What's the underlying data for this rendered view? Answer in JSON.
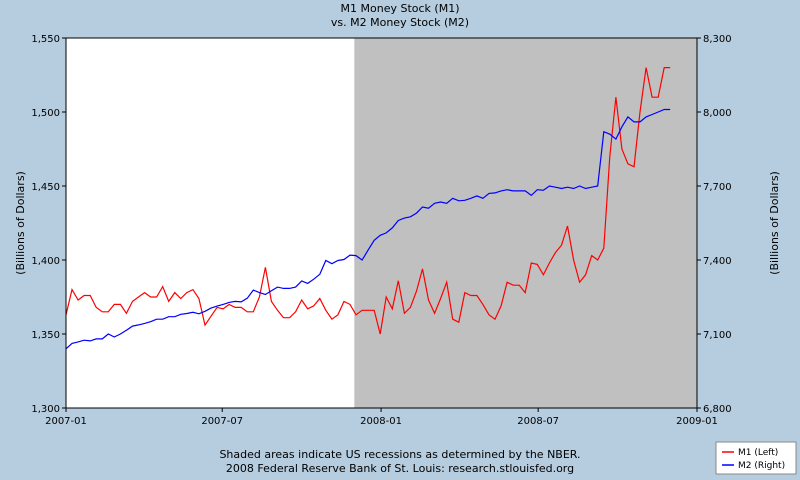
{
  "chart_data": {
    "type": "line",
    "title": "M1 Money Stock (M1)",
    "subtitle": "vs.  M2 Money Stock (M2)",
    "left_axis": {
      "label": "(Billions of Dollars)",
      "ylim": [
        1300,
        1550
      ],
      "ticks": [
        1300,
        1350,
        1400,
        1450,
        1500,
        1550
      ],
      "tick_labels": [
        "1,300",
        "1,350",
        "1,400",
        "1,450",
        "1,500",
        "1,550"
      ]
    },
    "right_axis": {
      "label": "(Billions of Dollars)",
      "ylim": [
        6800,
        8300
      ],
      "ticks": [
        6800,
        7100,
        7400,
        7700,
        8000,
        8300
      ],
      "tick_labels": [
        "6,800",
        "7,100",
        "7,400",
        "7,700",
        "8,000",
        "8,300"
      ]
    },
    "x_axis": {
      "xlim": [
        "2007-01-01",
        "2009-01-01"
      ],
      "ticks": [
        "2007-01-01",
        "2007-07-01",
        "2008-01-01",
        "2008-07-01",
        "2009-01-01"
      ],
      "tick_labels": [
        "2007-01",
        "2007-07",
        "2008-01",
        "2008-07",
        "2009-01"
      ]
    },
    "recession_band": {
      "start": "2007-12-01",
      "end": "2009-01-01"
    },
    "grid": false,
    "legend_position": "bottom-right",
    "series": [
      {
        "name": "M1 (Left)",
        "axis": "left",
        "color": "#ff0000",
        "x": [
          "2007-01-01",
          "2007-01-08",
          "2007-01-15",
          "2007-01-22",
          "2007-01-29",
          "2007-02-05",
          "2007-02-12",
          "2007-02-19",
          "2007-02-26",
          "2007-03-05",
          "2007-03-12",
          "2007-03-19",
          "2007-03-26",
          "2007-04-02",
          "2007-04-09",
          "2007-04-16",
          "2007-04-23",
          "2007-04-30",
          "2007-05-07",
          "2007-05-14",
          "2007-05-21",
          "2007-05-28",
          "2007-06-04",
          "2007-06-11",
          "2007-06-18",
          "2007-06-25",
          "2007-07-02",
          "2007-07-09",
          "2007-07-16",
          "2007-07-23",
          "2007-07-30",
          "2007-08-06",
          "2007-08-13",
          "2007-08-20",
          "2007-08-27",
          "2007-09-03",
          "2007-09-10",
          "2007-09-17",
          "2007-09-24",
          "2007-10-01",
          "2007-10-08",
          "2007-10-15",
          "2007-10-22",
          "2007-10-29",
          "2007-11-05",
          "2007-11-12",
          "2007-11-19",
          "2007-11-26",
          "2007-12-03",
          "2007-12-10",
          "2007-12-17",
          "2007-12-24",
          "2007-12-31",
          "2008-01-07",
          "2008-01-14",
          "2008-01-21",
          "2008-01-28",
          "2008-02-04",
          "2008-02-11",
          "2008-02-18",
          "2008-02-25",
          "2008-03-03",
          "2008-03-10",
          "2008-03-17",
          "2008-03-24",
          "2008-03-31",
          "2008-04-07",
          "2008-04-14",
          "2008-04-21",
          "2008-04-28",
          "2008-05-05",
          "2008-05-12",
          "2008-05-19",
          "2008-05-26",
          "2008-06-02",
          "2008-06-09",
          "2008-06-16",
          "2008-06-23",
          "2008-06-30",
          "2008-07-07",
          "2008-07-14",
          "2008-07-21",
          "2008-07-28",
          "2008-08-04",
          "2008-08-11",
          "2008-08-18",
          "2008-08-25",
          "2008-09-01",
          "2008-09-08",
          "2008-09-15",
          "2008-09-22",
          "2008-09-29",
          "2008-10-06",
          "2008-10-13",
          "2008-10-20",
          "2008-10-27",
          "2008-11-03",
          "2008-11-10",
          "2008-11-17",
          "2008-11-24",
          "2008-12-01"
        ],
        "values": [
          1363,
          1380,
          1373,
          1376,
          1376,
          1368,
          1365,
          1365,
          1370,
          1370,
          1364,
          1372,
          1375,
          1378,
          1375,
          1375,
          1382,
          1372,
          1378,
          1374,
          1378,
          1380,
          1374,
          1356,
          1362,
          1368,
          1367,
          1370,
          1368,
          1368,
          1365,
          1365,
          1375,
          1395,
          1372,
          1366,
          1361,
          1361,
          1365,
          1373,
          1367,
          1369,
          1374,
          1366,
          1360,
          1363,
          1372,
          1370,
          1363,
          1366,
          1366,
          1366,
          1350,
          1375,
          1367,
          1386,
          1364,
          1368,
          1379,
          1394,
          1373,
          1364,
          1374,
          1385,
          1360,
          1358,
          1378,
          1376,
          1376,
          1370,
          1363,
          1360,
          1369,
          1385,
          1383,
          1383,
          1378,
          1398,
          1397,
          1390,
          1398,
          1405,
          1410,
          1423,
          1400,
          1385,
          1390,
          1403,
          1400,
          1408,
          1470,
          1510,
          1475,
          1465,
          1463,
          1500,
          1530,
          1510,
          1510,
          1530,
          1530
        ]
      },
      {
        "name": "M2 (Right)",
        "axis": "right",
        "color": "#0000ff",
        "x": [
          "2007-01-01",
          "2007-01-08",
          "2007-01-15",
          "2007-01-22",
          "2007-01-29",
          "2007-02-05",
          "2007-02-12",
          "2007-02-19",
          "2007-02-26",
          "2007-03-05",
          "2007-03-12",
          "2007-03-19",
          "2007-03-26",
          "2007-04-02",
          "2007-04-09",
          "2007-04-16",
          "2007-04-23",
          "2007-04-30",
          "2007-05-07",
          "2007-05-14",
          "2007-05-21",
          "2007-05-28",
          "2007-06-04",
          "2007-06-11",
          "2007-06-18",
          "2007-06-25",
          "2007-07-02",
          "2007-07-09",
          "2007-07-16",
          "2007-07-23",
          "2007-07-30",
          "2007-08-06",
          "2007-08-13",
          "2007-08-20",
          "2007-08-27",
          "2007-09-03",
          "2007-09-10",
          "2007-09-17",
          "2007-09-24",
          "2007-10-01",
          "2007-10-08",
          "2007-10-15",
          "2007-10-22",
          "2007-10-29",
          "2007-11-05",
          "2007-11-12",
          "2007-11-19",
          "2007-11-26",
          "2007-12-03",
          "2007-12-10",
          "2007-12-17",
          "2007-12-24",
          "2007-12-31",
          "2008-01-07",
          "2008-01-14",
          "2008-01-21",
          "2008-01-28",
          "2008-02-04",
          "2008-02-11",
          "2008-02-18",
          "2008-02-25",
          "2008-03-03",
          "2008-03-10",
          "2008-03-17",
          "2008-03-24",
          "2008-03-31",
          "2008-04-07",
          "2008-04-14",
          "2008-04-21",
          "2008-04-28",
          "2008-05-05",
          "2008-05-12",
          "2008-05-19",
          "2008-05-26",
          "2008-06-02",
          "2008-06-09",
          "2008-06-16",
          "2008-06-23",
          "2008-06-30",
          "2008-07-07",
          "2008-07-14",
          "2008-07-21",
          "2008-07-28",
          "2008-08-04",
          "2008-08-11",
          "2008-08-18",
          "2008-08-25",
          "2008-09-01",
          "2008-09-08",
          "2008-09-15",
          "2008-09-22",
          "2008-09-29",
          "2008-10-06",
          "2008-10-13",
          "2008-10-20",
          "2008-10-27",
          "2008-11-03",
          "2008-11-10",
          "2008-11-17",
          "2008-11-24",
          "2008-12-01"
        ],
        "values": [
          7040,
          7062,
          7068,
          7075,
          7072,
          7080,
          7080,
          7100,
          7088,
          7100,
          7115,
          7132,
          7137,
          7143,
          7150,
          7160,
          7160,
          7170,
          7170,
          7180,
          7183,
          7188,
          7182,
          7192,
          7205,
          7213,
          7220,
          7228,
          7232,
          7230,
          7245,
          7278,
          7268,
          7260,
          7275,
          7290,
          7285,
          7285,
          7290,
          7315,
          7305,
          7322,
          7342,
          7398,
          7385,
          7398,
          7402,
          7420,
          7418,
          7400,
          7440,
          7480,
          7500,
          7510,
          7530,
          7560,
          7570,
          7575,
          7590,
          7615,
          7610,
          7630,
          7635,
          7630,
          7650,
          7640,
          7642,
          7650,
          7660,
          7650,
          7670,
          7672,
          7680,
          7685,
          7680,
          7680,
          7680,
          7662,
          7685,
          7683,
          7700,
          7695,
          7690,
          7695,
          7690,
          7700,
          7690,
          7695,
          7700,
          7920,
          7910,
          7890,
          7940,
          7980,
          7960,
          7960,
          7980,
          7990,
          8000,
          8010,
          8010
        ]
      }
    ],
    "footnote_1": "Shaded areas indicate US recessions as determined by the NBER.",
    "footnote_2": "2008 Federal Reserve Bank of St. Louis: research.stlouisfed.org"
  }
}
